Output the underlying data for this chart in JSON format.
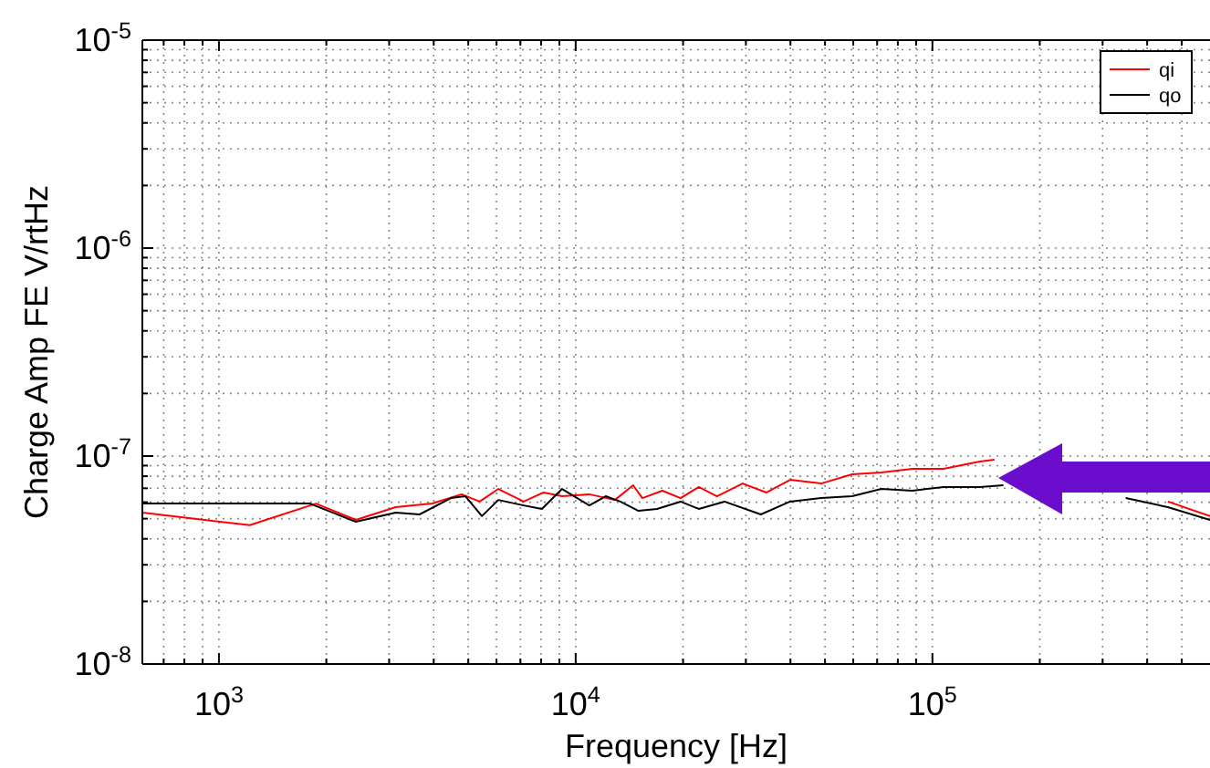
{
  "chart_data": {
    "type": "line",
    "xlabel": "Frequency [Hz]",
    "ylabel": "Charge Amp FE V/rtHz",
    "log": "xy",
    "grid": true,
    "legend": "top right",
    "line_style": "solid",
    "xlim": [
      610,
      600000
    ],
    "ylim": [
      1e-08,
      1e-05
    ],
    "xticks": [
      {
        "value": 700,
        "label": null
      },
      {
        "value": 800,
        "label": null
      },
      {
        "value": 900,
        "label": null
      },
      {
        "value": 1000,
        "label": "10$^{3}$"
      },
      {
        "value": 2000,
        "label": null
      },
      {
        "value": 3000,
        "label": null
      },
      {
        "value": 4000,
        "label": null
      },
      {
        "value": 5000,
        "label": null
      },
      {
        "value": 6000,
        "label": null
      },
      {
        "value": 7000,
        "label": null
      },
      {
        "value": 8000,
        "label": null
      },
      {
        "value": 9000,
        "label": null
      },
      {
        "value": 10000,
        "label": "10$^{4}$"
      },
      {
        "value": 20000,
        "label": null
      },
      {
        "value": 30000,
        "label": null
      },
      {
        "value": 40000,
        "label": null
      },
      {
        "value": 50000,
        "label": null
      },
      {
        "value": 60000,
        "label": null
      },
      {
        "value": 70000,
        "label": null
      },
      {
        "value": 80000,
        "label": null
      },
      {
        "value": 90000,
        "label": null
      },
      {
        "value": 100000,
        "label": "10$^{5}$"
      },
      {
        "value": 200000,
        "label": null
      },
      {
        "value": 300000,
        "label": null
      },
      {
        "value": 400000,
        "label": null
      },
      {
        "value": 500000,
        "label": null
      }
    ],
    "yticks": [
      {
        "value": 1e-08,
        "label": "10$^{-8}$"
      },
      {
        "value": 2e-08,
        "label": null
      },
      {
        "value": 3e-08,
        "label": null
      },
      {
        "value": 4e-08,
        "label": null
      },
      {
        "value": 5e-08,
        "label": null
      },
      {
        "value": 6e-08,
        "label": null
      },
      {
        "value": 7e-08,
        "label": null
      },
      {
        "value": 8e-08,
        "label": null
      },
      {
        "value": 9e-08,
        "label": null
      },
      {
        "value": 1e-07,
        "label": "10$^{-7}$"
      },
      {
        "value": 2e-07,
        "label": null
      },
      {
        "value": 3e-07,
        "label": null
      },
      {
        "value": 4e-07,
        "label": null
      },
      {
        "value": 5e-07,
        "label": null
      },
      {
        "value": 6e-07,
        "label": null
      },
      {
        "value": 7e-07,
        "label": null
      },
      {
        "value": 8e-07,
        "label": null
      },
      {
        "value": 9e-07,
        "label": null
      },
      {
        "value": 1e-06,
        "label": "10$^{-6}$"
      },
      {
        "value": 2e-06,
        "label": null
      },
      {
        "value": 3e-06,
        "label": null
      },
      {
        "value": 4e-06,
        "label": null
      },
      {
        "value": 5e-06,
        "label": null
      },
      {
        "value": 6e-06,
        "label": null
      },
      {
        "value": 7e-06,
        "label": null
      },
      {
        "value": 8e-06,
        "label": null
      },
      {
        "value": 9e-06,
        "label": null
      },
      {
        "value": 1e-05,
        "label": "10$^{-5}$"
      }
    ],
    "series": [
      {
        "name": "qi",
        "color": "#ff0000",
        "x": [
          610,
          1220,
          1870,
          2420,
          3130,
          3960,
          4790,
          5380,
          6070,
          7150,
          8130,
          9160,
          10920,
          12880,
          14490,
          15380,
          17500,
          19680,
          22140,
          24890,
          29380,
          34270,
          39900,
          48750,
          59570,
          71940,
          87900,
          107400,
          135800,
          149300,
          233400,
          348300,
          457000,
          600000
        ],
        "values": [
          5.35e-08,
          4.65e-08,
          5.91e-08,
          4.93e-08,
          5.68e-08,
          5.91e-08,
          6.55e-08,
          6.04e-08,
          6.95e-08,
          6.04e-08,
          6.68e-08,
          6.41e-08,
          6.55e-08,
          6.15e-08,
          7.24e-08,
          6.28e-08,
          6.81e-08,
          6.28e-08,
          7.1e-08,
          6.41e-08,
          7.38e-08,
          6.68e-08,
          7.69e-08,
          7.38e-08,
          8.17e-08,
          8.34e-08,
          8.69e-08,
          8.69e-08,
          9.41e-08,
          9.6e-08,
          null,
          null,
          6.04e-08,
          5.14e-08
        ]
      },
      {
        "name": "qo",
        "color": "#000000",
        "x": [
          610,
          1800,
          2420,
          3130,
          3650,
          4470,
          4910,
          5460,
          6070,
          7150,
          8040,
          9160,
          10920,
          12140,
          13340,
          15000,
          16900,
          19680,
          22140,
          26120,
          33040,
          39900,
          48750,
          59570,
          71940,
          87900,
          107400,
          135800,
          158200,
          193300,
          233400,
          348300,
          457000,
          600000
        ],
        "values": [
          5.91e-08,
          5.91e-08,
          4.83e-08,
          5.35e-08,
          5.24e-08,
          6.28e-08,
          6.41e-08,
          5.14e-08,
          6.15e-08,
          5.79e-08,
          5.57e-08,
          6.95e-08,
          5.79e-08,
          6.41e-08,
          6.04e-08,
          5.45e-08,
          5.57e-08,
          6.04e-08,
          5.57e-08,
          6.04e-08,
          5.24e-08,
          6.04e-08,
          6.28e-08,
          6.41e-08,
          6.95e-08,
          6.81e-08,
          7.1e-08,
          7.1e-08,
          7.24e-08,
          null,
          null,
          6.28e-08,
          5.68e-08,
          4.93e-08
        ]
      }
    ]
  }
}
